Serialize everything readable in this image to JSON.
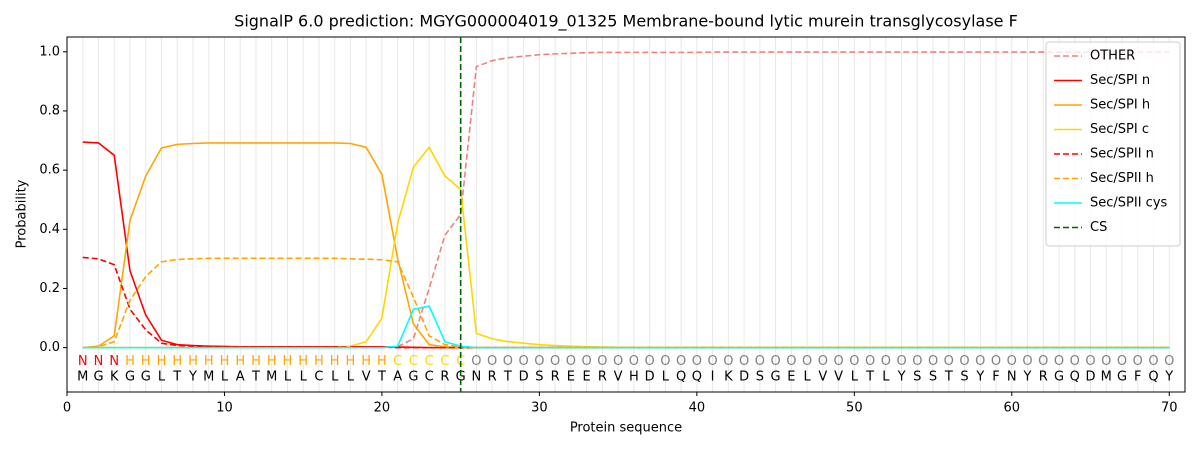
{
  "chart_data": {
    "type": "line",
    "title": "SignalP 6.0 prediction: MGYG000004019_01325 Membrane-bound lytic murein transglycosylase F",
    "xlabel": "Protein sequence",
    "ylabel": "Probability",
    "xlim": [
      0,
      71
    ],
    "ylim": [
      -0.15,
      1.05
    ],
    "xticks": [
      0,
      10,
      20,
      30,
      40,
      50,
      60,
      70
    ],
    "yticks": [
      {
        "value": 0,
        "label": "0.0"
      },
      0.2,
      0.4,
      0.6,
      0.8,
      {
        "value": 1,
        "label": "1.0"
      }
    ],
    "legend": "upper right",
    "x": [
      1,
      2,
      3,
      4,
      5,
      6,
      7,
      8,
      9,
      10,
      11,
      12,
      13,
      14,
      15,
      16,
      17,
      18,
      19,
      20,
      21,
      22,
      23,
      24,
      25,
      26,
      27,
      28,
      29,
      30,
      31,
      32,
      33,
      34,
      35,
      36,
      37,
      38,
      39,
      40,
      41,
      42,
      43,
      44,
      45,
      46,
      47,
      48,
      49,
      50,
      51,
      52,
      53,
      54,
      55,
      56,
      57,
      58,
      59,
      60,
      61,
      62,
      63,
      64,
      65,
      66,
      67,
      68,
      69,
      70
    ],
    "sequence": [
      "M",
      "G",
      "K",
      "G",
      "G",
      "L",
      "T",
      "Y",
      "M",
      "L",
      "A",
      "T",
      "M",
      "L",
      "L",
      "C",
      "L",
      "L",
      "V",
      "T",
      "A",
      "G",
      "C",
      "R",
      "G",
      "N",
      "R",
      "T",
      "D",
      "S",
      "R",
      "E",
      "E",
      "R",
      "V",
      "H",
      "D",
      "L",
      "Q",
      "Q",
      "I",
      "K",
      "D",
      "S",
      "G",
      "E",
      "L",
      "V",
      "V",
      "L",
      "T",
      "L",
      "Y",
      "S",
      "S",
      "T",
      "S",
      "Y",
      "F",
      "N",
      "Y",
      "R",
      "G",
      "Q",
      "D",
      "M",
      "G",
      "F",
      "Q",
      "Y"
    ],
    "annotations": [
      "N",
      "N",
      "N",
      "H",
      "H",
      "H",
      "H",
      "H",
      "H",
      "H",
      "H",
      "H",
      "H",
      "H",
      "H",
      "H",
      "H",
      "H",
      "H",
      "H",
      "C",
      "C",
      "C",
      "C",
      "C",
      "O",
      "O",
      "O",
      "O",
      "O",
      "O",
      "O",
      "O",
      "O",
      "O",
      "O",
      "O",
      "O",
      "O",
      "O",
      "O",
      "O",
      "O",
      "O",
      "O",
      "O",
      "O",
      "O",
      "O",
      "O",
      "O",
      "O",
      "O",
      "O",
      "O",
      "O",
      "O",
      "O",
      "O",
      "O",
      "O",
      "O",
      "O",
      "O",
      "O",
      "O",
      "O",
      "O",
      "O",
      "O"
    ],
    "annotation_colors": {
      "N": "#ff0000",
      "H": "#ffa500",
      "C": "#ffd700",
      "O": "#808080"
    },
    "series": [
      {
        "name": "OTHER",
        "color": "#f08080",
        "dash": true,
        "values": [
          0,
          0,
          0,
          0,
          0,
          0,
          0,
          0,
          0,
          0,
          0,
          0,
          0,
          0,
          0,
          0,
          0,
          0,
          0,
          0,
          0.003,
          0.03,
          0.2,
          0.38,
          0.45,
          0.95,
          0.97,
          0.98,
          0.985,
          0.99,
          0.993,
          0.995,
          0.997,
          0.998,
          0.998,
          0.998,
          0.998,
          0.998,
          0.998,
          0.998,
          0.999,
          0.999,
          0.999,
          0.999,
          0.999,
          0.999,
          0.999,
          0.999,
          0.999,
          0.999,
          0.999,
          0.999,
          0.999,
          0.999,
          0.999,
          0.999,
          0.999,
          0.999,
          0.999,
          0.999,
          0.999,
          0.999,
          0.999,
          0.999,
          0.999,
          0.999,
          0.999,
          0.999,
          0.999,
          0.999
        ]
      },
      {
        "name": "Sec/SPI n",
        "color": "#ff0000",
        "dash": false,
        "values": [
          0.695,
          0.692,
          0.65,
          0.26,
          0.11,
          0.025,
          0.01,
          0.007,
          0.005,
          0.004,
          0.003,
          0.003,
          0.003,
          0.003,
          0.003,
          0.003,
          0.003,
          0.003,
          0.003,
          0.003,
          0.002,
          0.001,
          0,
          0,
          0,
          0,
          0,
          0,
          0,
          0,
          0,
          0,
          0,
          0,
          0,
          0,
          0,
          0,
          0,
          0,
          0,
          0,
          0,
          0,
          0,
          0,
          0,
          0,
          0,
          0,
          0,
          0,
          0,
          0,
          0,
          0,
          0,
          0,
          0,
          0,
          0,
          0,
          0,
          0,
          0,
          0,
          0,
          0,
          0,
          0
        ]
      },
      {
        "name": "Sec/SPI h",
        "color": "#ffa500",
        "dash": false,
        "values": [
          0,
          0.005,
          0.04,
          0.43,
          0.58,
          0.675,
          0.687,
          0.69,
          0.692,
          0.692,
          0.692,
          0.692,
          0.692,
          0.692,
          0.692,
          0.692,
          0.692,
          0.69,
          0.677,
          0.585,
          0.3,
          0.08,
          0.01,
          0.003,
          0,
          0,
          0,
          0,
          0,
          0,
          0,
          0,
          0,
          0,
          0,
          0,
          0,
          0,
          0,
          0,
          0,
          0,
          0,
          0,
          0,
          0,
          0,
          0,
          0,
          0,
          0,
          0,
          0,
          0,
          0,
          0,
          0,
          0,
          0,
          0,
          0,
          0,
          0,
          0,
          0,
          0,
          0,
          0,
          0,
          0
        ]
      },
      {
        "name": "Sec/SPI c",
        "color": "#ffd700",
        "dash": false,
        "values": [
          0,
          0,
          0,
          0,
          0,
          0,
          0,
          0,
          0,
          0,
          0,
          0,
          0,
          0,
          0,
          0,
          0,
          0.005,
          0.02,
          0.1,
          0.42,
          0.61,
          0.677,
          0.58,
          0.535,
          0.048,
          0.03,
          0.02,
          0.015,
          0.01,
          0.007,
          0.005,
          0.003,
          0.002,
          0.001,
          0.001,
          0.001,
          0.001,
          0.001,
          0.001,
          0.001,
          0.001,
          0.001,
          0.001,
          0.001,
          0.001,
          0.001,
          0.001,
          0.001,
          0.001,
          0.001,
          0.001,
          0.001,
          0.001,
          0.001,
          0.001,
          0.001,
          0.001,
          0.001,
          0.001,
          0.001,
          0.001,
          0.001,
          0.001,
          0.001,
          0.001,
          0.001,
          0.001,
          0.001,
          0.001
        ]
      },
      {
        "name": "Sec/SPII n",
        "color": "#ff0000",
        "dash": true,
        "values": [
          0.305,
          0.3,
          0.28,
          0.13,
          0.06,
          0.015,
          0.007,
          0.005,
          0.003,
          0.002,
          0.002,
          0.002,
          0.002,
          0.002,
          0.002,
          0.002,
          0.002,
          0.002,
          0.002,
          0.002,
          0,
          0,
          0,
          0,
          0,
          0,
          0,
          0,
          0,
          0,
          0,
          0,
          0,
          0,
          0,
          0,
          0,
          0,
          0,
          0,
          0,
          0,
          0,
          0,
          0,
          0,
          0,
          0,
          0,
          0,
          0,
          0,
          0,
          0,
          0,
          0,
          0,
          0,
          0,
          0,
          0,
          0,
          0,
          0,
          0,
          0,
          0,
          0,
          0,
          0
        ]
      },
      {
        "name": "Sec/SPII h",
        "color": "#ffa500",
        "dash": true,
        "values": [
          0,
          0.003,
          0.02,
          0.16,
          0.24,
          0.29,
          0.298,
          0.3,
          0.302,
          0.302,
          0.302,
          0.302,
          0.302,
          0.302,
          0.302,
          0.302,
          0.302,
          0.3,
          0.299,
          0.297,
          0.29,
          0.17,
          0.04,
          0.01,
          0.003,
          0,
          0,
          0,
          0,
          0,
          0,
          0,
          0,
          0,
          0,
          0,
          0,
          0,
          0,
          0,
          0,
          0,
          0,
          0,
          0,
          0,
          0,
          0,
          0,
          0,
          0,
          0,
          0,
          0,
          0,
          0,
          0,
          0,
          0,
          0,
          0,
          0,
          0,
          0,
          0,
          0,
          0,
          0,
          0,
          0
        ]
      },
      {
        "name": "Sec/SPII cys",
        "color": "#00ffff",
        "dash": false,
        "values": [
          0,
          0,
          0,
          0,
          0,
          0,
          0,
          0,
          0,
          0,
          0,
          0,
          0,
          0,
          0,
          0,
          0,
          0,
          0,
          0,
          0.005,
          0.13,
          0.14,
          0.02,
          0.005,
          0,
          0,
          0,
          0,
          0,
          0,
          0,
          0,
          0,
          0,
          0,
          0,
          0,
          0,
          0,
          0,
          0,
          0,
          0,
          0,
          0,
          0,
          0,
          0,
          0,
          0,
          0,
          0,
          0,
          0,
          0,
          0,
          0,
          0,
          0,
          0,
          0,
          0,
          0,
          0,
          0,
          0,
          0,
          0,
          0
        ]
      }
    ],
    "cs": {
      "name": "CS",
      "x": 25,
      "color": "#006400"
    }
  }
}
